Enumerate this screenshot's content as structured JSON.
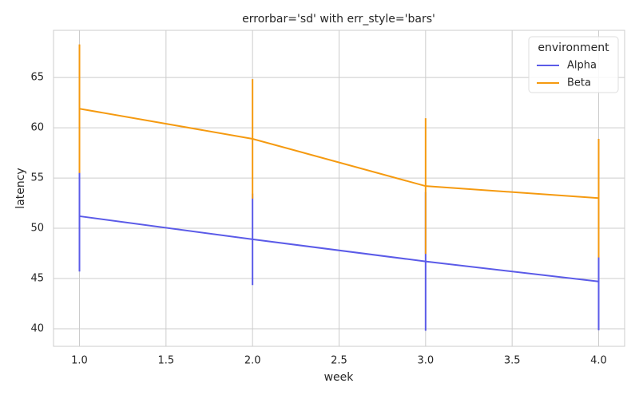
{
  "chart_data": {
    "type": "line",
    "title": "errorbar='sd' with err_style='bars'",
    "x_label": "week",
    "y_label": "latency",
    "x": [
      1,
      2,
      3,
      4
    ],
    "series": [
      {
        "name": "Alpha",
        "color": "#5b5be8",
        "values": [
          51.2,
          48.9,
          46.7,
          44.7
        ],
        "errors": [
          5.5,
          4.55,
          6.9,
          4.85
        ]
      },
      {
        "name": "Beta",
        "color": "#f59a10",
        "values": [
          61.9,
          58.9,
          54.2,
          53.0
        ],
        "errors": [
          6.4,
          5.95,
          6.75,
          5.9
        ]
      }
    ],
    "legend_title": "environment",
    "legend": "upper right",
    "xlim": [
      0.85,
      4.15
    ],
    "ylim": [
      38.25,
      69.7
    ],
    "xticks": [
      {
        "value": 1,
        "label": "1.0"
      },
      1.5,
      {
        "value": 2,
        "label": "2.0"
      },
      2.5,
      {
        "value": 3,
        "label": "3.0"
      },
      3.5,
      {
        "value": 4,
        "label": "4.0"
      }
    ],
    "yticks": [
      40,
      45,
      50,
      55,
      60,
      65
    ],
    "grid": true
  }
}
